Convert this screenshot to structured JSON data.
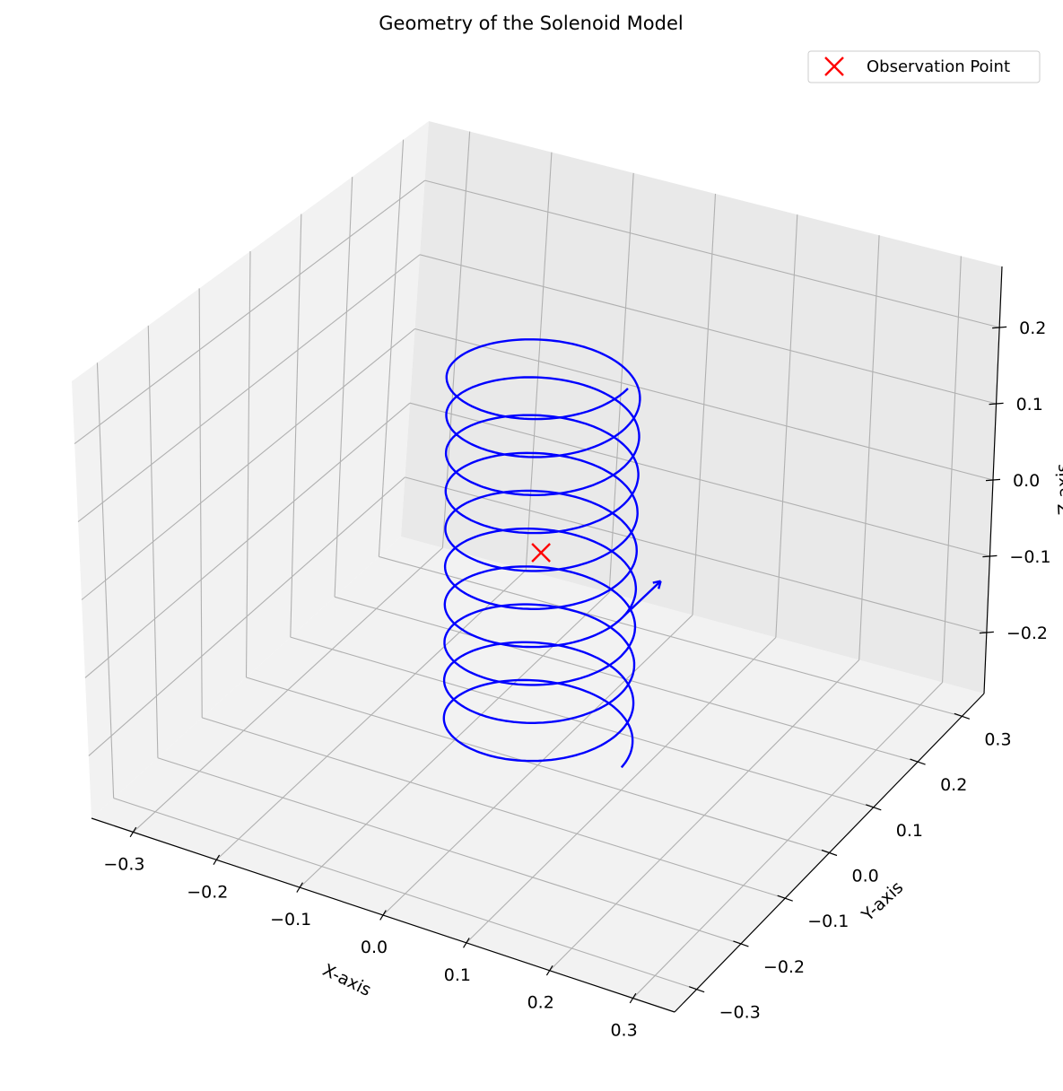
{
  "chart_data": {
    "type": "3d-line",
    "title": "Geometry of the Solenoid Model",
    "xlabel": "X-axis",
    "ylabel": "Y-axis",
    "zlabel": "Z-axis",
    "xlim": [
      -0.35,
      0.35
    ],
    "ylim": [
      -0.35,
      0.35
    ],
    "zlim": [
      -0.28,
      0.28
    ],
    "x_ticks": [
      -0.3,
      -0.2,
      -0.1,
      0.0,
      0.1,
      0.2,
      0.3
    ],
    "y_ticks": [
      -0.3,
      -0.2,
      -0.1,
      0.0,
      0.1,
      0.2,
      0.3
    ],
    "z_ticks": [
      -0.2,
      -0.1,
      0.0,
      0.1,
      0.2
    ],
    "x_tick_labels": [
      "−0.3",
      "−0.2",
      "−0.1",
      "0.0",
      "0.1",
      "0.2",
      "0.3"
    ],
    "y_tick_labels": [
      "−0.3",
      "−0.2",
      "−0.1",
      "0.0",
      "0.1",
      "0.2",
      "0.3"
    ],
    "z_tick_labels": [
      "−0.2",
      "−0.1",
      "0.0",
      "0.1",
      "0.2"
    ],
    "grid": true,
    "legend_position": "top-right",
    "series": [
      {
        "kind": "helix",
        "color": "#0000ff",
        "radius": 0.1,
        "turns": 10,
        "z_range": [
          -0.25,
          0.25
        ],
        "center": [
          0,
          0
        ]
      },
      {
        "name": "Observation Point",
        "kind": "scatter",
        "marker": "x",
        "color": "#ff0000",
        "points": [
          [
            0,
            0,
            0
          ]
        ]
      },
      {
        "kind": "quiver",
        "color": "#0000ff",
        "origin": [
          0.1,
          0.0,
          -0.05
        ],
        "direction": [
          0.0,
          0.08,
          0.0
        ]
      }
    ]
  }
}
